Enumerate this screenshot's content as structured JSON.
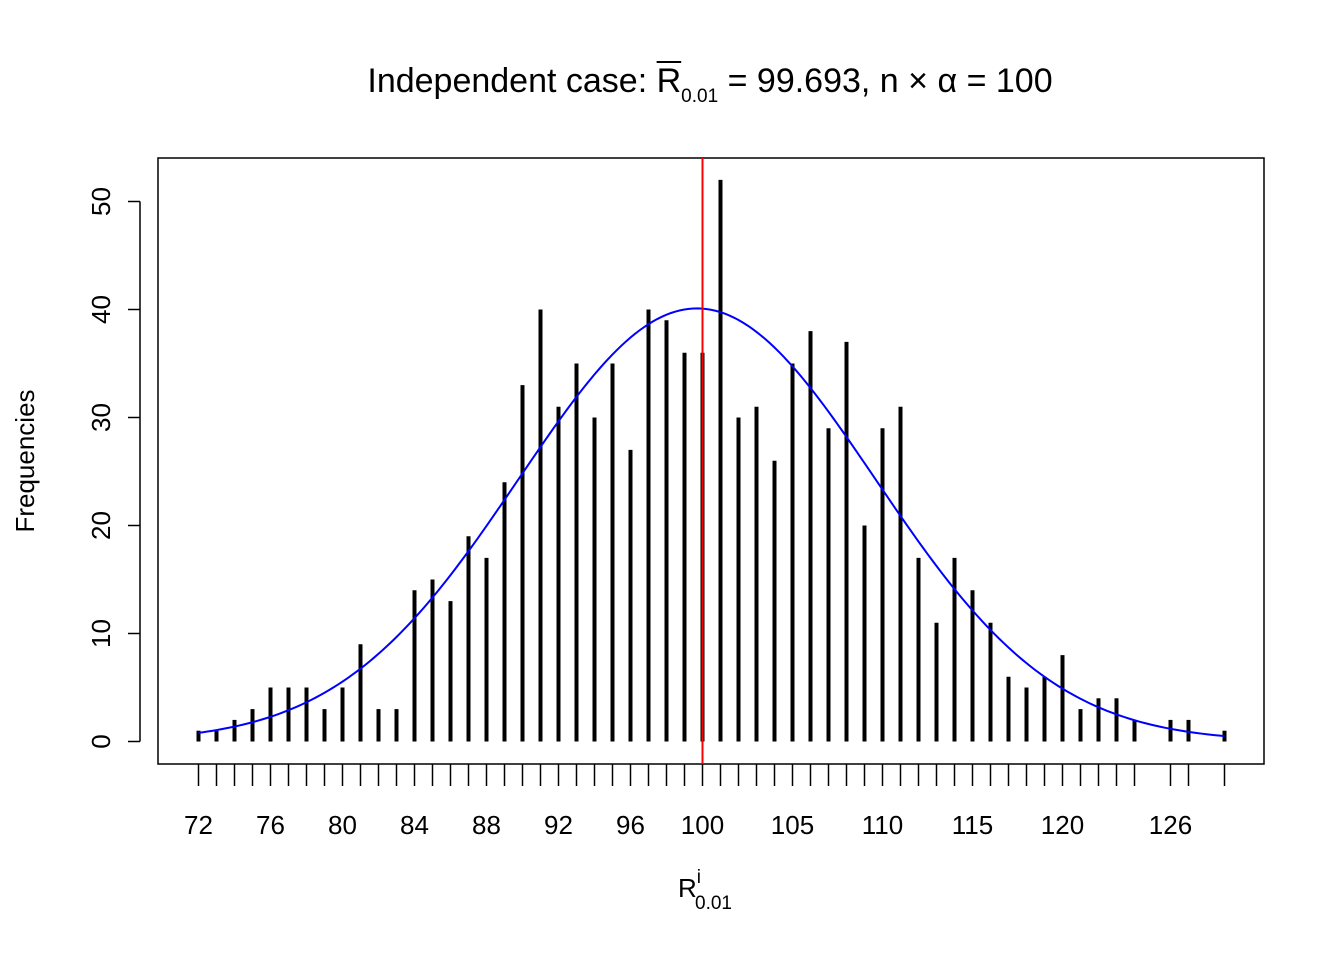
{
  "chart_data": {
    "type": "bar",
    "title": {
      "prefix": "Independent case: ",
      "symbol": "R",
      "subscript": "0.01",
      "middle": " = 99.693, n ",
      "times": "×",
      "alpha": " α",
      "suffix": " = 100"
    },
    "xlabel": {
      "main": "R",
      "superscript": "i",
      "subscript": "0.01"
    },
    "ylabel": "Frequencies",
    "x": [
      72,
      73,
      74,
      75,
      76,
      77,
      78,
      79,
      80,
      81,
      82,
      83,
      84,
      85,
      86,
      87,
      88,
      89,
      90,
      91,
      92,
      93,
      94,
      95,
      96,
      97,
      98,
      99,
      100,
      101,
      102,
      103,
      104,
      105,
      106,
      107,
      108,
      109,
      110,
      111,
      112,
      113,
      114,
      115,
      116,
      117,
      118,
      119,
      120,
      121,
      122,
      123,
      124,
      126,
      127,
      129
    ],
    "values": [
      1,
      1,
      2,
      3,
      5,
      5,
      5,
      3,
      5,
      9,
      3,
      3,
      14,
      15,
      13,
      19,
      17,
      24,
      33,
      40,
      31,
      35,
      30,
      35,
      27,
      40,
      39,
      36,
      36,
      52,
      30,
      31,
      26,
      35,
      38,
      29,
      37,
      20,
      29,
      31,
      17,
      11,
      17,
      14,
      11,
      6,
      5,
      6,
      8,
      3,
      4,
      4,
      2,
      2,
      2,
      1
    ],
    "xtick_labels": [
      "72",
      "76",
      "80",
      "84",
      "88",
      "92",
      "96",
      "100",
      "105",
      "110",
      "115",
      "120",
      "126"
    ],
    "ylim": [
      0,
      52
    ],
    "yticks": [
      0,
      10,
      20,
      30,
      40,
      50
    ],
    "normal_curve": {
      "mean": 99.693,
      "peak": 40.1,
      "sd": 9.9,
      "color": "#0000ff"
    },
    "vline": {
      "x": 100,
      "color": "#ff0000"
    },
    "bar_color": "#000000",
    "grid": false
  }
}
